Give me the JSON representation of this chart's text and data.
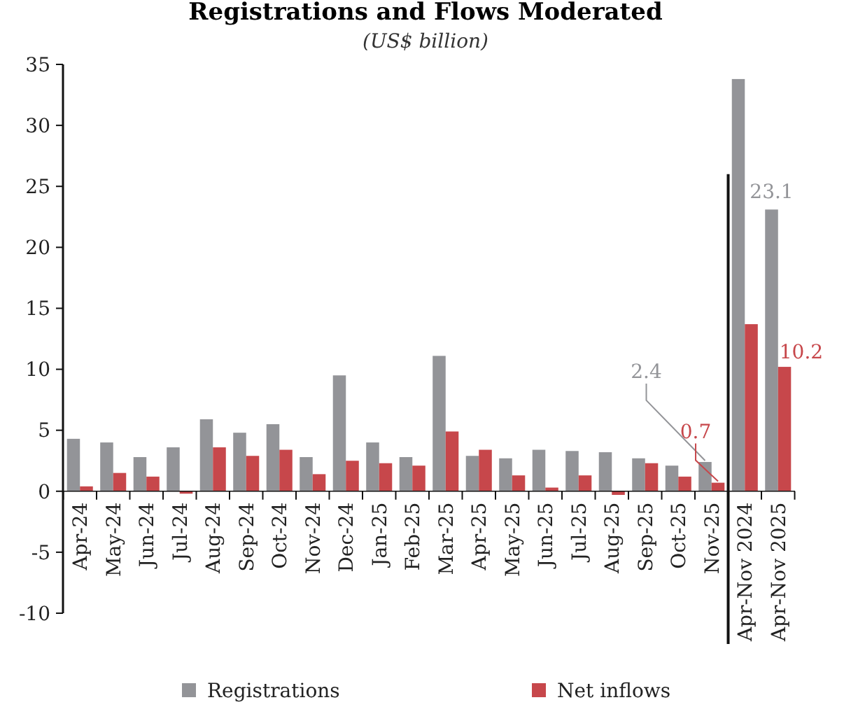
{
  "chart_data": {
    "type": "bar",
    "title": "Registrations and Flows Moderated",
    "subtitle": "(US$ billion)",
    "categories": [
      "Apr-24",
      "May-24",
      "Jun-24",
      "Jul-24",
      "Aug-24",
      "Sep-24",
      "Oct-24",
      "Nov-24",
      "Dec-24",
      "Jan-25",
      "Feb-25",
      "Mar-25",
      "Apr-25",
      "May-25",
      "Jun-25",
      "Jul-25",
      "Aug-25",
      "Sep-25",
      "Oct-25",
      "Nov-25",
      "Apr-Nov 2024",
      "Apr-Nov 2025"
    ],
    "series": [
      {
        "name": "Registrations",
        "color": "#939498",
        "values": [
          4.3,
          4.0,
          2.8,
          3.6,
          5.9,
          4.8,
          5.5,
          2.8,
          9.5,
          4.0,
          2.8,
          11.1,
          2.9,
          2.7,
          3.4,
          3.3,
          3.2,
          2.7,
          2.1,
          2.4,
          33.8,
          23.1
        ],
        "value_labels": [
          null,
          null,
          null,
          null,
          null,
          null,
          null,
          null,
          null,
          null,
          null,
          null,
          null,
          null,
          null,
          null,
          null,
          null,
          null,
          "2.4",
          null,
          "23.1"
        ]
      },
      {
        "name": "Net inflows",
        "color": "#c7474b",
        "values": [
          0.4,
          1.5,
          1.2,
          -0.2,
          3.6,
          2.9,
          3.4,
          1.4,
          2.5,
          2.3,
          2.1,
          4.9,
          3.4,
          1.3,
          0.3,
          1.3,
          -0.3,
          2.3,
          1.2,
          0.7,
          13.7,
          10.2
        ],
        "value_labels": [
          null,
          null,
          null,
          null,
          null,
          null,
          null,
          null,
          null,
          null,
          null,
          null,
          null,
          null,
          null,
          null,
          null,
          null,
          null,
          "0.7",
          null,
          "10.2"
        ]
      }
    ],
    "ylim": [
      -10,
      35
    ],
    "yticks": [
      -10,
      -5,
      0,
      5,
      10,
      15,
      20,
      25,
      30,
      35
    ],
    "grid": false,
    "legend": "bottom"
  }
}
